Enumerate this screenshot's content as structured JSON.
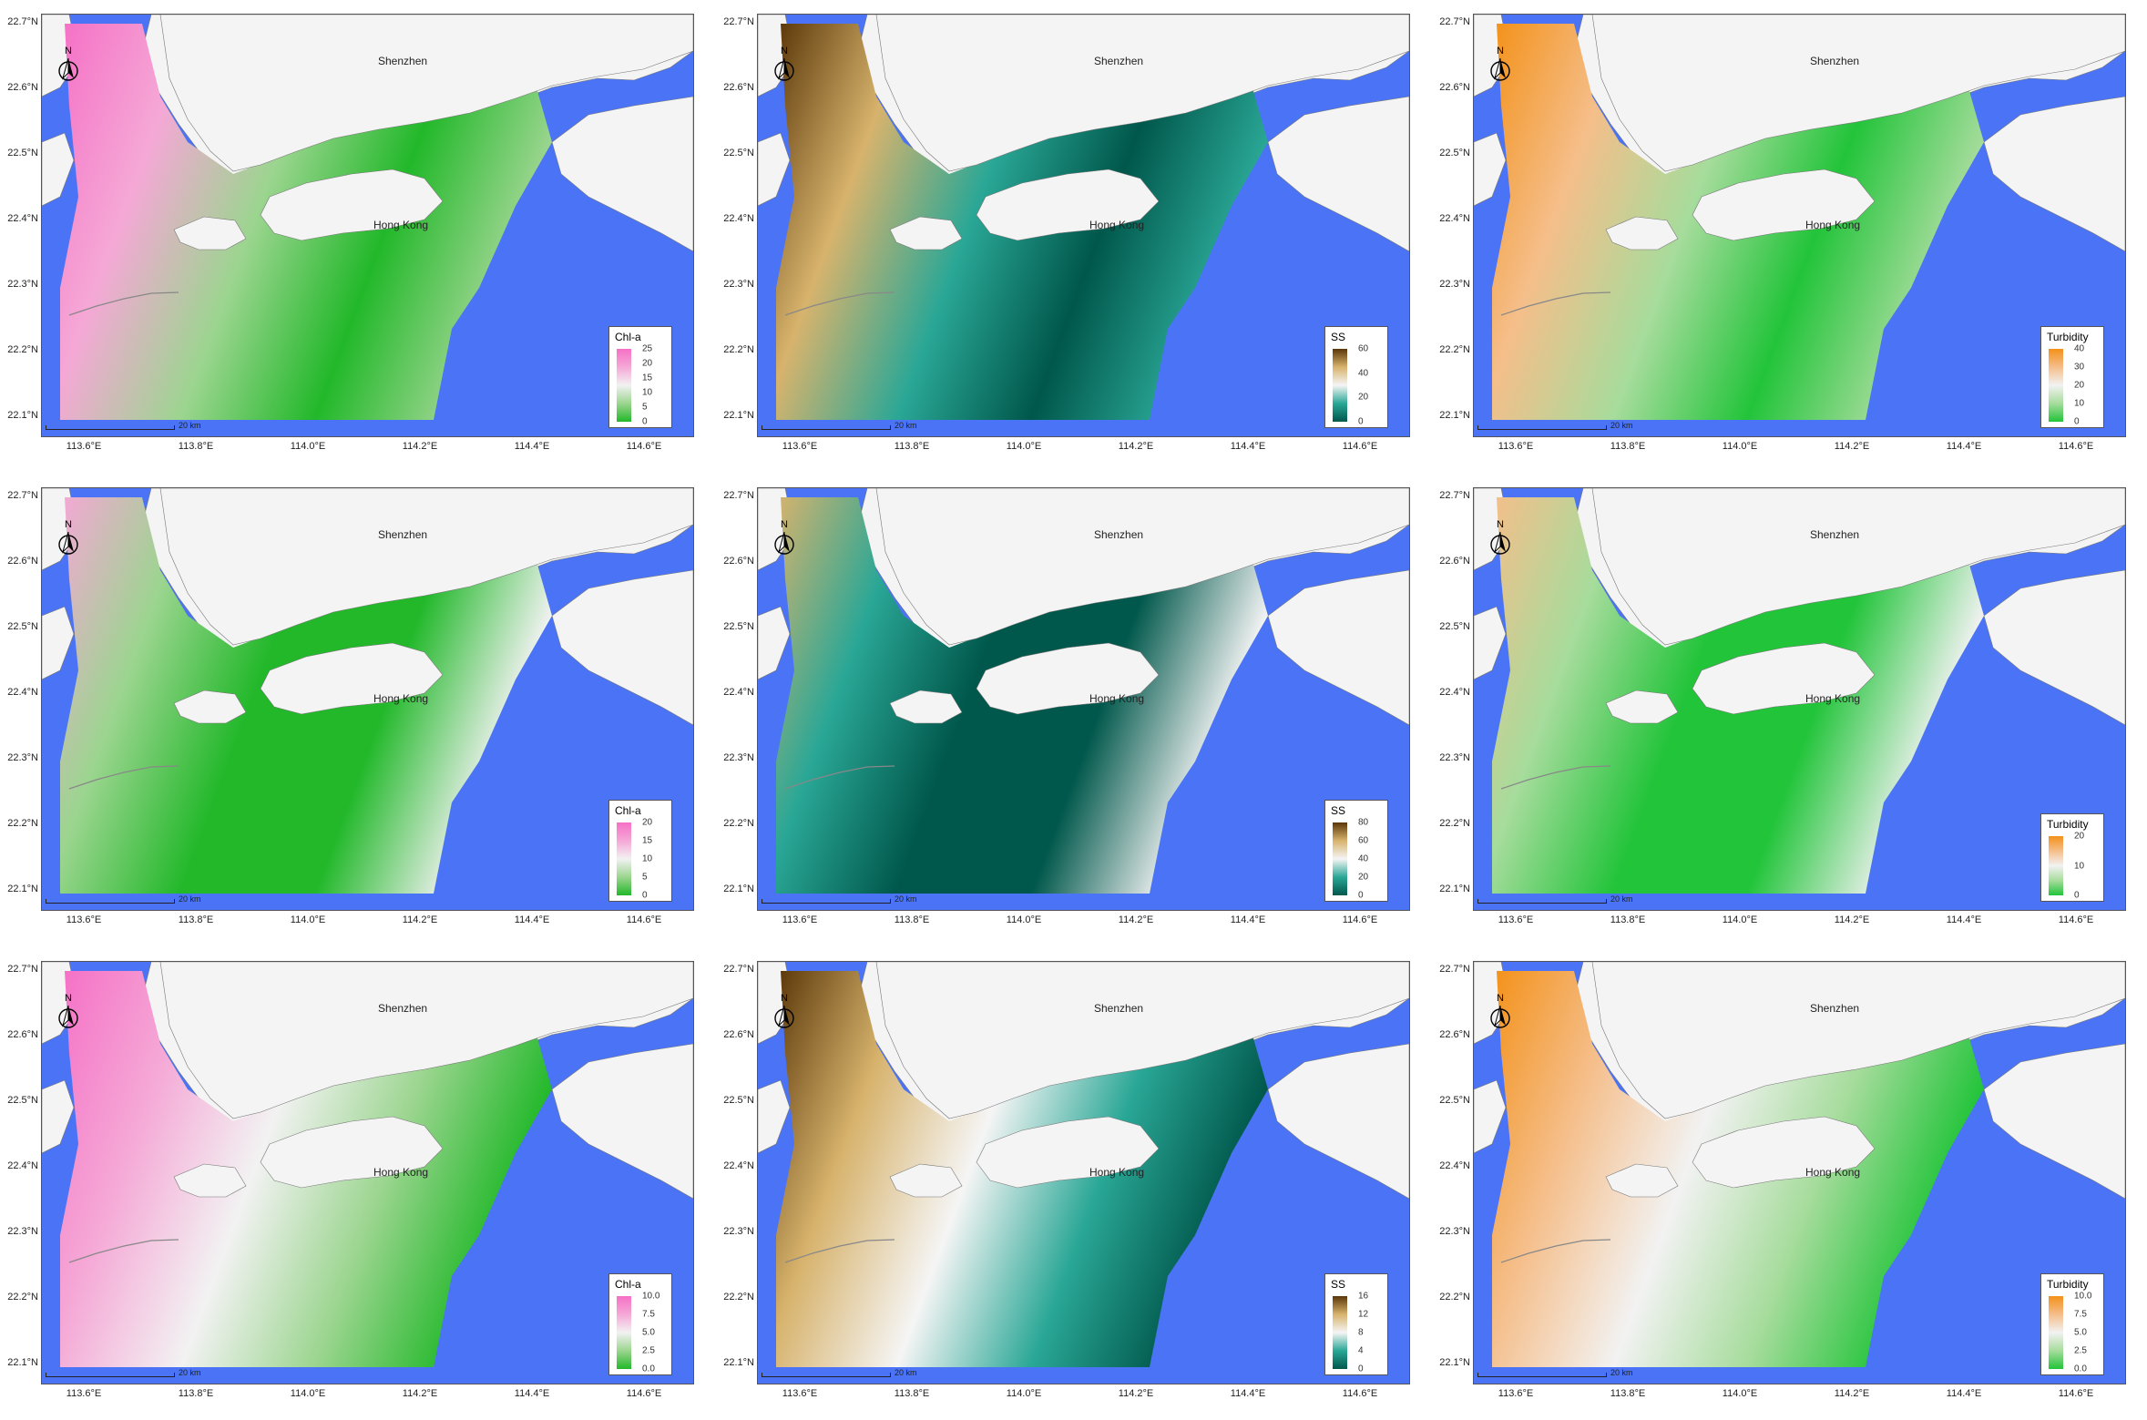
{
  "common": {
    "lat_labels": [
      "22.7°N",
      "22.6°N",
      "22.5°N",
      "22.4°N",
      "22.3°N",
      "22.2°N",
      "22.1°N"
    ],
    "lon_labels": [
      "113.6°E",
      "113.8°E",
      "114.0°E",
      "114.2°E",
      "114.4°E",
      "114.6°E"
    ],
    "place_shenzhen": "Shenzhen",
    "place_hongkong": "Hong Kong",
    "north_label": "N",
    "scale_label": "20 km"
  },
  "colors": {
    "water": "#4a74f5",
    "land": "#f4f4f4",
    "chl_ramp": [
      "#22b82a",
      "#9bd58f",
      "#f2f2f2",
      "#f5a8d6",
      "#f570c6"
    ],
    "ss_ramp": [
      "#00574b",
      "#2aa796",
      "#f5f5f5",
      "#d7b36d",
      "#5a3608"
    ],
    "turb_ramp": [
      "#22c43a",
      "#a6dc9c",
      "#f2f2f2",
      "#f5be8a",
      "#f39119"
    ]
  },
  "panels": [
    {
      "legend_title": "Chl-a",
      "ticks": [
        "25",
        "20",
        "15",
        "10",
        "5",
        "0"
      ]
    },
    {
      "legend_title": "SS",
      "ticks": [
        "60",
        "40",
        "20",
        "0"
      ]
    },
    {
      "legend_title": "Turbidity",
      "ticks": [
        "40",
        "30",
        "20",
        "10",
        "0"
      ]
    },
    {
      "legend_title": "Chl-a",
      "ticks": [
        "20",
        "15",
        "10",
        "5",
        "0"
      ]
    },
    {
      "legend_title": "SS",
      "ticks": [
        "80",
        "60",
        "40",
        "20",
        "0"
      ]
    },
    {
      "legend_title": "Turbidity",
      "ticks": [
        "20",
        "10",
        "0"
      ]
    },
    {
      "legend_title": "Chl-a",
      "ticks": [
        "10.0",
        "7.5",
        "5.0",
        "2.5",
        "0.0"
      ]
    },
    {
      "legend_title": "SS",
      "ticks": [
        "16",
        "12",
        "8",
        "4",
        "0"
      ]
    },
    {
      "legend_title": "Turbidity",
      "ticks": [
        "10.0",
        "7.5",
        "5.0",
        "2.5",
        "0.0"
      ]
    }
  ]
}
